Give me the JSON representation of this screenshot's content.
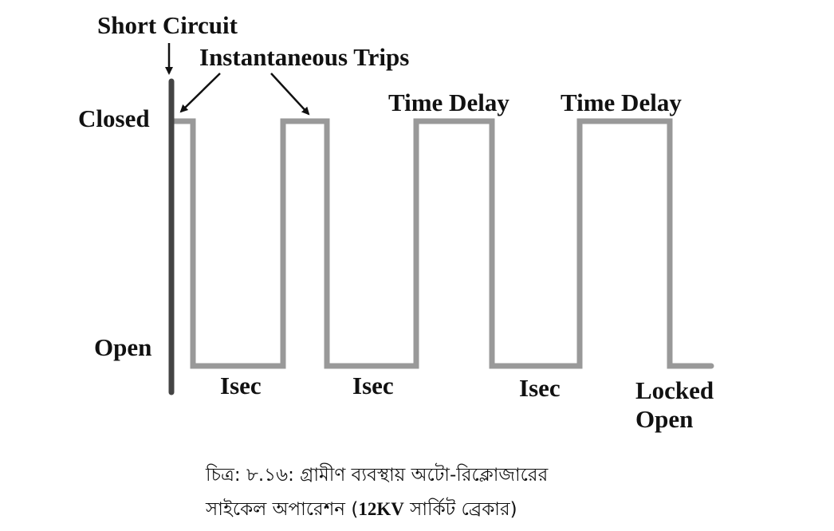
{
  "labels": {
    "short_circuit": "Short Circuit",
    "instantaneous_trips": "Instantaneous Trips",
    "closed": "Closed",
    "open": "Open",
    "time_delay_1": "Time Delay",
    "time_delay_2": "Time Delay",
    "isec_1": "Isec",
    "isec_2": "Isec",
    "isec_3": "Isec",
    "locked": "Locked",
    "locked_open": "Open"
  },
  "caption": {
    "line1": "চিত্র: ৮.১৬: গ্রামীণ ব্যবস্থায় অটো-রিক্লোজারের",
    "line2_prefix": "সাইকেল অপারেশন (",
    "line2_bold": "12KV",
    "line2_suffix": " সার্কিট ব্রেকার)"
  },
  "colors": {
    "waveform": "#999999",
    "fault_line": "#444444",
    "text": "#111111"
  }
}
